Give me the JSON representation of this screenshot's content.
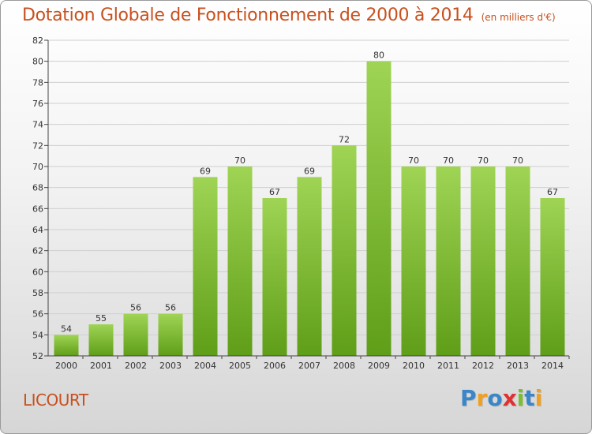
{
  "chart_data": {
    "type": "bar",
    "title": "Dotation Globale de Fonctionnement de 2000 à 2014",
    "subtitle": "(en milliers d'€)",
    "categories": [
      "2000",
      "2001",
      "2002",
      "2003",
      "2004",
      "2005",
      "2006",
      "2007",
      "2008",
      "2009",
      "2010",
      "2011",
      "2012",
      "2013",
      "2014"
    ],
    "values": [
      54,
      55,
      56,
      56,
      69,
      70,
      67,
      69,
      72,
      80,
      70,
      70,
      70,
      70,
      67
    ],
    "ylim": [
      52,
      82
    ],
    "yticks": [
      52,
      54,
      56,
      58,
      60,
      62,
      64,
      66,
      68,
      70,
      72,
      74,
      76,
      78,
      80,
      82
    ],
    "grid": true,
    "bar_color": "#7cbf2e"
  },
  "footer": {
    "commune": "LICOURT",
    "logo_letters": [
      "P",
      "r",
      "o",
      "x",
      "i",
      "t",
      "i"
    ],
    "logo_colors": [
      "#3a86c8",
      "#f0a020",
      "#3a86c8",
      "#e03030",
      "#7cbf2e",
      "#3a86c8",
      "#f0a020"
    ]
  }
}
